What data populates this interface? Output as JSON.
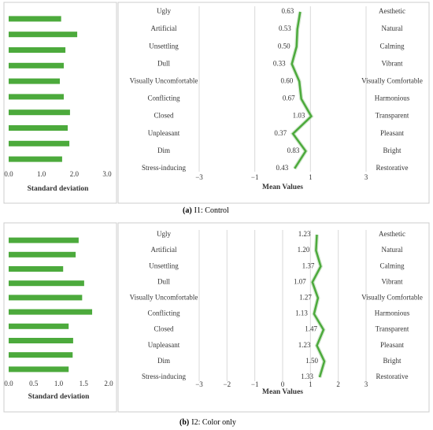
{
  "chart_data": [
    {
      "type": "bar",
      "orientation": "horizontal",
      "values": [
        1.6,
        2.09,
        1.73,
        1.68,
        1.56,
        1.68,
        1.87,
        1.8,
        1.85,
        1.63
      ],
      "color": "#4caa3c",
      "xlim": [
        0,
        3
      ],
      "xticks": [
        {
          "value": 0,
          "label": "0.0"
        },
        {
          "value": 1,
          "label": "1.0"
        },
        {
          "value": 2,
          "label": "2.0"
        },
        {
          "value": 3,
          "label": "3.0"
        }
      ],
      "xlabel": "Standard deviation",
      "grid": false
    },
    {
      "type": "line",
      "orientation": "horizontal",
      "left_labels": [
        "Ugly",
        "Artificial",
        "Unsettling",
        "Dull",
        "Visually Uncomfortable",
        "Conflicting",
        "Closed",
        "Unpleasant",
        "Dim",
        "Stress-inducing"
      ],
      "right_labels": [
        "Aesthetic",
        "Natural",
        "Calming",
        "Vibrant",
        "Visually Comfortable",
        "Harmonious",
        "Transparent",
        "Pleasant",
        "Bright",
        "Restorative"
      ],
      "values": [
        0.63,
        0.53,
        0.5,
        0.33,
        0.6,
        0.67,
        1.03,
        0.37,
        0.83,
        0.43
      ],
      "value_labels": [
        "0.63",
        "0.53",
        "0.50",
        "0.33",
        "0.60",
        "0.67",
        "1.03",
        "0.37",
        "0.83",
        "0.43"
      ],
      "color": "#4caa3c",
      "xlim": [
        -3,
        3
      ],
      "xticks": [
        {
          "value": -3,
          "label": "−3"
        },
        {
          "value": -1,
          "label": "−1"
        },
        1,
        3
      ],
      "xlabel": "Mean Values",
      "grid": true
    },
    {
      "type": "bar",
      "orientation": "horizontal",
      "values": [
        1.4,
        1.34,
        1.09,
        1.51,
        1.47,
        1.67,
        1.2,
        1.29,
        1.28,
        1.2
      ],
      "color": "#4caa3c",
      "xlim": [
        0,
        2
      ],
      "xticks": [
        {
          "value": 0,
          "label": "0.0"
        },
        {
          "value": 0.5,
          "label": "0.5"
        },
        {
          "value": 1,
          "label": "1.0"
        },
        {
          "value": 1.5,
          "label": "1.5"
        },
        {
          "value": 2,
          "label": "2.0"
        }
      ],
      "xlabel": "Standard deviation",
      "grid": false
    },
    {
      "type": "line",
      "orientation": "horizontal",
      "left_labels": [
        "Ugly",
        "Artificial",
        "Unsettling",
        "Dull",
        "Visually Uncomfortable",
        "Conflicting",
        "Closed",
        "Unpleasant",
        "Dim",
        "Stress-inducing"
      ],
      "right_labels": [
        "Aesthetic",
        "Natural",
        "Calming",
        "Vibrant",
        "Visually Comfortable",
        "Harmonious",
        "Transparent",
        "Pleasant",
        "Bright",
        "Restorative"
      ],
      "values": [
        1.23,
        1.2,
        1.37,
        1.07,
        1.27,
        1.13,
        1.47,
        1.23,
        1.5,
        1.33
      ],
      "value_labels": [
        "1.23",
        "1.20",
        "1.37",
        "1.07",
        "1.27",
        "1.13",
        "1.47",
        "1.23",
        "1.50",
        "1.33"
      ],
      "color": "#4caa3c",
      "xlim": [
        -3,
        3
      ],
      "xticks": [
        {
          "value": -3,
          "label": "−3"
        },
        {
          "value": -2,
          "label": "−2"
        },
        {
          "value": -1,
          "label": "−1"
        },
        0,
        1,
        2,
        3
      ],
      "xlabel": "Mean Values",
      "grid": true
    }
  ],
  "captions": [
    {
      "label": "(a)",
      "text": "I1: Control"
    },
    {
      "label": "(b)",
      "text": "I2: Color only"
    }
  ]
}
